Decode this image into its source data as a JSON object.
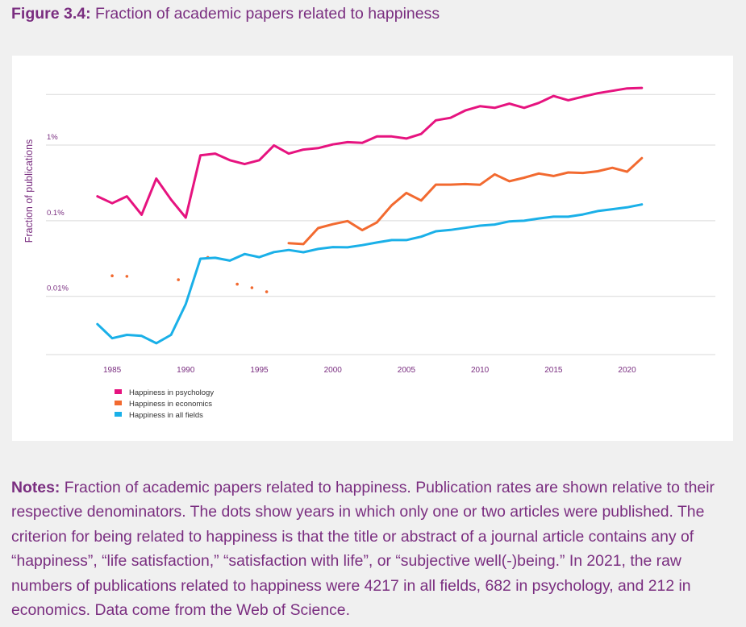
{
  "figure": {
    "label": "Figure 3.4:",
    "title": "Fraction of academic papers related to happiness"
  },
  "notes": {
    "label": "Notes:",
    "text": "Fraction of academic papers related to happiness. Publication rates are shown relative to their respective denominators. The dots show years in which only one or two articles were published. The criterion for being related to happiness is that the title or abstract of a journal article contains any of “happiness”, “life satisfaction,” “satisfaction with life”, or “subjective well(-)being.” In 2021, the raw numbers of publications related to happiness were 4217 in all fields, 682 in psychology, and 212 in economics. Data come from the Web of Science."
  },
  "colors": {
    "psychology": "#e6137f",
    "economics": "#f26a30",
    "all_fields": "#1ab0e8",
    "gridline": "#d9d9d9",
    "axis_text": "#7a2e80",
    "title_text": "#7a2e80"
  },
  "chart_data": {
    "type": "line",
    "title": "",
    "xlabel": "",
    "ylabel": "Fraction of publications",
    "y_scale": "log",
    "ylim": [
      0.0017,
      4.8
    ],
    "xlim": [
      1980.5,
      2026
    ],
    "x_ticks": [
      1985,
      1990,
      1995,
      2000,
      2005,
      2010,
      2015,
      2020
    ],
    "x_tick_labels": [
      "1985",
      "1990",
      "1995",
      "2000",
      "2005",
      "2010",
      "2015",
      "2020"
    ],
    "y_ticks": [
      1,
      0.1,
      0.01
    ],
    "y_tick_labels": [
      "1%",
      "0.1%",
      "0.01%"
    ],
    "grid": "horizontal",
    "legend_position": "bottom-left",
    "series": [
      {
        "name": "Happiness in psychology",
        "color": "#e6137f",
        "x": [
          1984,
          1985,
          1986,
          1987,
          1988,
          1989,
          1990,
          1991,
          1992,
          1993,
          1994,
          1995,
          1996,
          1997,
          1998,
          1999,
          2000,
          2001,
          2002,
          2003,
          2004,
          2005,
          2006,
          2007,
          2008,
          2009,
          2010,
          2011,
          2012,
          2013,
          2014,
          2015,
          2016,
          2017,
          2018,
          2019,
          2020,
          2021
        ],
        "y": [
          0.21,
          0.17,
          0.21,
          0.12,
          0.36,
          0.19,
          0.11,
          0.73,
          0.77,
          0.63,
          0.56,
          0.63,
          0.99,
          0.77,
          0.87,
          0.91,
          1.02,
          1.09,
          1.07,
          1.3,
          1.3,
          1.22,
          1.4,
          2.12,
          2.29,
          2.86,
          3.26,
          3.1,
          3.52,
          3.1,
          3.6,
          4.45,
          3.91,
          4.36,
          4.84,
          5.2,
          5.6,
          5.69
        ]
      },
      {
        "name": "Happiness in economics",
        "color": "#f26a30",
        "x": [
          1997,
          1998,
          1999,
          2000,
          2001,
          2002,
          2003,
          2004,
          2005,
          2006,
          2007,
          2008,
          2009,
          2010,
          2011,
          2012,
          2013,
          2014,
          2015,
          2016,
          2017,
          2018,
          2019,
          2020,
          2021
        ],
        "y": [
          0.0505,
          0.049,
          0.08,
          0.09,
          0.099,
          0.075,
          0.095,
          0.16,
          0.233,
          0.185,
          0.3,
          0.3,
          0.305,
          0.298,
          0.41,
          0.332,
          0.37,
          0.42,
          0.39,
          0.434,
          0.428,
          0.45,
          0.5,
          0.444,
          0.672
        ],
        "dots": {
          "x": [
            1985,
            1986,
            1989.5,
            1991.5,
            1993.5,
            1994.5,
            1995.5
          ],
          "y": [
            0.0187,
            0.0184,
            0.0166,
            0.0327,
            0.0145,
            0.013,
            0.0115
          ]
        }
      },
      {
        "name": "Happiness in all fields",
        "color": "#1ab0e8",
        "x": [
          1984,
          1985,
          1986,
          1987,
          1988,
          1989,
          1990,
          1991,
          1992,
          1993,
          1994,
          1995,
          1996,
          1997,
          1998,
          1999,
          2000,
          2001,
          2002,
          2003,
          2004,
          2005,
          2006,
          2007,
          2008,
          2009,
          2010,
          2011,
          2012,
          2013,
          2014,
          2015,
          2016,
          2017,
          2018,
          2019,
          2020,
          2021
        ],
        "y": [
          0.0043,
          0.0028,
          0.0031,
          0.003,
          0.0024,
          0.0031,
          0.0079,
          0.0315,
          0.0323,
          0.0297,
          0.0363,
          0.033,
          0.0385,
          0.041,
          0.0383,
          0.0423,
          0.0448,
          0.0445,
          0.0475,
          0.0515,
          0.0555,
          0.0555,
          0.0615,
          0.0725,
          0.0755,
          0.0805,
          0.086,
          0.089,
          0.098,
          0.1,
          0.107,
          0.113,
          0.113,
          0.121,
          0.134,
          0.142,
          0.15,
          0.164
        ]
      }
    ]
  }
}
